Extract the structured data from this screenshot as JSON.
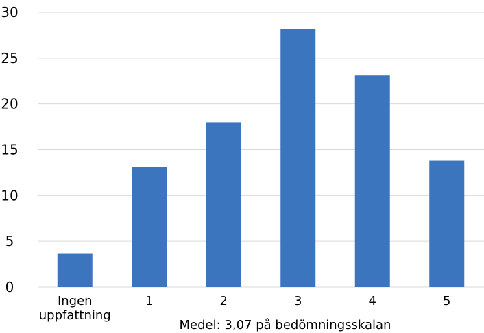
{
  "chart_data": {
    "type": "bar",
    "categories": [
      "Ingen uppfattning",
      "1",
      "2",
      "3",
      "4",
      "5"
    ],
    "values": [
      3.7,
      13.1,
      18.0,
      28.2,
      23.1,
      13.8
    ],
    "ylim": [
      0,
      30
    ],
    "yticks": [
      "0",
      "5",
      "10",
      "15",
      "20",
      "25",
      "30"
    ],
    "xlabel": "Medel: 3,07 på bedömningsskalan",
    "ylabel": "",
    "title": "",
    "grid": true,
    "legend": "none",
    "bar_color": "#3a75bd",
    "grid_color": "#d9d9d9"
  }
}
